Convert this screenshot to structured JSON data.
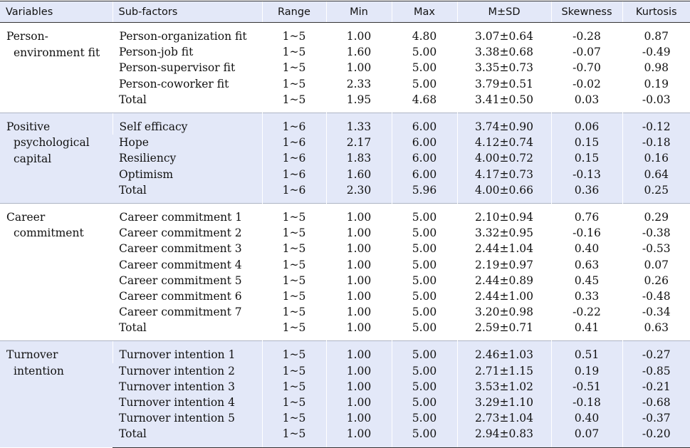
{
  "headers": {
    "variables": "Variables",
    "subfactors": "Sub-factors",
    "range": "Range",
    "min": "Min",
    "max": "Max",
    "msd": "M±SD",
    "skewness": "Skewness",
    "kurtosis": "Kurtosis"
  },
  "groups": [
    {
      "variable": [
        "Person-",
        "environment fit"
      ],
      "rows": [
        {
          "sub": "Person-organization fit",
          "range": "1~5",
          "min": "1.00",
          "max": "4.80",
          "msd": "3.07±0.64",
          "skew": "-0.28",
          "kurt": "0.87"
        },
        {
          "sub": "Person-job fit",
          "range": "1~5",
          "min": "1.60",
          "max": "5.00",
          "msd": "3.38±0.68",
          "skew": "-0.07",
          "kurt": "-0.49"
        },
        {
          "sub": "Person-supervisor fit",
          "range": "1~5",
          "min": "1.00",
          "max": "5.00",
          "msd": "3.35±0.73",
          "skew": "-0.70",
          "kurt": "0.98"
        },
        {
          "sub": "Person-coworker fit",
          "range": "1~5",
          "min": "2.33",
          "max": "5.00",
          "msd": "3.79±0.51",
          "skew": "-0.02",
          "kurt": "0.19"
        },
        {
          "sub": "Total",
          "range": "1~5",
          "min": "1.95",
          "max": "4.68",
          "msd": "3.41±0.50",
          "skew": "0.03",
          "kurt": "-0.03"
        }
      ]
    },
    {
      "variable": [
        "Positive",
        "psychological",
        "capital"
      ],
      "rows": [
        {
          "sub": "Self efficacy",
          "range": "1~6",
          "min": "1.33",
          "max": "6.00",
          "msd": "3.74±0.90",
          "skew": "0.06",
          "kurt": "-0.12"
        },
        {
          "sub": "Hope",
          "range": "1~6",
          "min": "2.17",
          "max": "6.00",
          "msd": "4.12±0.74",
          "skew": "0.15",
          "kurt": "-0.18"
        },
        {
          "sub": "Resiliency",
          "range": "1~6",
          "min": "1.83",
          "max": "6.00",
          "msd": "4.00±0.72",
          "skew": "0.15",
          "kurt": "0.16"
        },
        {
          "sub": "Optimism",
          "range": "1~6",
          "min": "1.60",
          "max": "6.00",
          "msd": "4.17±0.73",
          "skew": "-0.13",
          "kurt": "0.64"
        },
        {
          "sub": "Total",
          "range": "1~6",
          "min": "2.30",
          "max": "5.96",
          "msd": "4.00±0.66",
          "skew": "0.36",
          "kurt": "0.25"
        }
      ]
    },
    {
      "variable": [
        "Career",
        "commitment"
      ],
      "rows": [
        {
          "sub": "Career commitment 1",
          "range": "1~5",
          "min": "1.00",
          "max": "5.00",
          "msd": "2.10±0.94",
          "skew": "0.76",
          "kurt": "0.29"
        },
        {
          "sub": "Career commitment 2",
          "range": "1~5",
          "min": "1.00",
          "max": "5.00",
          "msd": "3.32±0.95",
          "skew": "-0.16",
          "kurt": "-0.38"
        },
        {
          "sub": "Career commitment 3",
          "range": "1~5",
          "min": "1.00",
          "max": "5.00",
          "msd": "2.44±1.04",
          "skew": "0.40",
          "kurt": "-0.53"
        },
        {
          "sub": "Career commitment 4",
          "range": "1~5",
          "min": "1.00",
          "max": "5.00",
          "msd": "2.19±0.97",
          "skew": "0.63",
          "kurt": "0.07"
        },
        {
          "sub": "Career commitment 5",
          "range": "1~5",
          "min": "1.00",
          "max": "5.00",
          "msd": "2.44±0.89",
          "skew": "0.45",
          "kurt": "0.26"
        },
        {
          "sub": "Career commitment 6",
          "range": "1~5",
          "min": "1.00",
          "max": "5.00",
          "msd": "2.44±1.00",
          "skew": "0.33",
          "kurt": "-0.48"
        },
        {
          "sub": "Career commitment 7",
          "range": "1~5",
          "min": "1.00",
          "max": "5.00",
          "msd": "3.20±0.98",
          "skew": "-0.22",
          "kurt": "-0.34"
        },
        {
          "sub": "Total",
          "range": "1~5",
          "min": "1.00",
          "max": "5.00",
          "msd": "2.59±0.71",
          "skew": "0.41",
          "kurt": "0.63"
        }
      ]
    },
    {
      "variable": [
        "Turnover",
        "intention"
      ],
      "rows": [
        {
          "sub": "Turnover intention 1",
          "range": "1~5",
          "min": "1.00",
          "max": "5.00",
          "msd": "2.46±1.03",
          "skew": "0.51",
          "kurt": "-0.27"
        },
        {
          "sub": "Turnover intention 2",
          "range": "1~5",
          "min": "1.00",
          "max": "5.00",
          "msd": "2.71±1.15",
          "skew": "0.19",
          "kurt": "-0.85"
        },
        {
          "sub": "Turnover intention 3",
          "range": "1~5",
          "min": "1.00",
          "max": "5.00",
          "msd": "3.53±1.02",
          "skew": "-0.51",
          "kurt": "-0.21"
        },
        {
          "sub": "Turnover intention 4",
          "range": "1~5",
          "min": "1.00",
          "max": "5.00",
          "msd": "3.29±1.10",
          "skew": "-0.18",
          "kurt": "-0.68"
        },
        {
          "sub": "Turnover intention 5",
          "range": "1~5",
          "min": "1.00",
          "max": "5.00",
          "msd": "2.73±1.04",
          "skew": "0.40",
          "kurt": "-0.37"
        },
        {
          "sub": "Total",
          "range": "1~5",
          "min": "1.00",
          "max": "5.00",
          "msd": "2.94±0.83",
          "skew": "0.07",
          "kurt": "-0.20"
        }
      ]
    }
  ]
}
